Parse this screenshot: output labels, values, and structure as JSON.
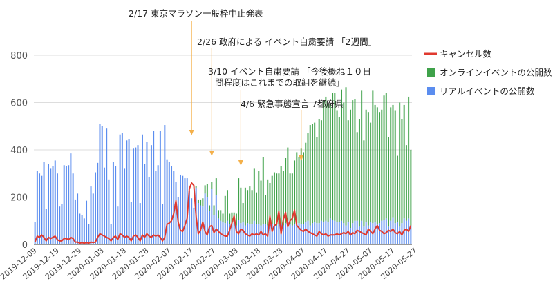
{
  "chart_data": {
    "type": "bar",
    "stacked": true,
    "title": "",
    "xlabel": "",
    "ylabel": "",
    "ylim": [
      0,
      800
    ],
    "yticks": [
      0,
      200,
      400,
      600,
      800
    ],
    "grid": true,
    "legend_position": "right",
    "x_start": "2019-12-09",
    "x_tick_labels": [
      "2019-12-09",
      "2019-12-19",
      "2019-12-29",
      "2020-01-08",
      "2020-01-18",
      "2020-01-28",
      "2020-02-07",
      "2020-02-17",
      "2020-02-27",
      "2020-03-08",
      "2020-03-18",
      "2020-03-28",
      "2020-04-07",
      "2020-04-17",
      "2020-04-27",
      "2020-05-07",
      "2020-05-17",
      "2020-05-27"
    ],
    "series": [
      {
        "name": "リアルイベントの公開数",
        "color": "#5b8def",
        "kind": "bar",
        "values": [
          95,
          310,
          300,
          290,
          350,
          150,
          340,
          320,
          330,
          355,
          300,
          160,
          170,
          335,
          330,
          335,
          385,
          300,
          190,
          215,
          130,
          125,
          110,
          185,
          85,
          245,
          215,
          305,
          345,
          510,
          500,
          325,
          490,
          275,
          85,
          350,
          330,
          160,
          465,
          470,
          320,
          440,
          445,
          180,
          405,
          410,
          420,
          175,
          465,
          340,
          435,
          285,
          420,
          480,
          310,
          335,
          480,
          170,
          505,
          360,
          350,
          330,
          310,
          265,
          200,
          295,
          290,
          280,
          280,
          225,
          195,
          155,
          240,
          175,
          165,
          160,
          215,
          200,
          140,
          235,
          125,
          210,
          110,
          100,
          95,
          90,
          100,
          85,
          85,
          95,
          80,
          105,
          90,
          95,
          80,
          90,
          85,
          85,
          100,
          85,
          85,
          80,
          85,
          85,
          80,
          100,
          85,
          85,
          80,
          85,
          85,
          80,
          90,
          100,
          85,
          80,
          85,
          90,
          90,
          85,
          85,
          95,
          100,
          80,
          90,
          95,
          90,
          90,
          100,
          95,
          100,
          95,
          110,
          105,
          100,
          95,
          95,
          100,
          90,
          80,
          95,
          70,
          90,
          100,
          100,
          75,
          100,
          75,
          95,
          80,
          95,
          90,
          95,
          85,
          90,
          100,
          105,
          110,
          75,
          100,
          115,
          90,
          95,
          75,
          90,
          110,
          100,
          110,
          80
        ]
      },
      {
        "name": "オンラインイベントの公開数",
        "color": "#3fa24a",
        "kind": "bar",
        "values": [
          0,
          0,
          0,
          0,
          0,
          0,
          0,
          0,
          0,
          0,
          0,
          0,
          0,
          0,
          0,
          0,
          0,
          0,
          0,
          0,
          0,
          0,
          0,
          0,
          0,
          0,
          0,
          0,
          0,
          0,
          0,
          0,
          0,
          0,
          0,
          0,
          0,
          0,
          0,
          0,
          0,
          0,
          0,
          0,
          0,
          0,
          0,
          0,
          0,
          0,
          0,
          0,
          0,
          0,
          0,
          0,
          0,
          0,
          0,
          0,
          0,
          0,
          0,
          0,
          0,
          0,
          0,
          0,
          0,
          0,
          0,
          0,
          5,
          15,
          25,
          35,
          35,
          55,
          25,
          30,
          40,
          70,
          35,
          45,
          35,
          115,
          130,
          45,
          50,
          40,
          50,
          175,
          150,
          80,
          160,
          140,
          160,
          145,
          220,
          135,
          225,
          190,
          285,
          125,
          195,
          160,
          205,
          220,
          220,
          215,
          245,
          230,
          275,
          310,
          215,
          220,
          270,
          300,
          280,
          320,
          305,
          335,
          370,
          425,
          420,
          420,
          365,
          440,
          425,
          510,
          525,
          500,
          485,
          535,
          540,
          470,
          445,
          555,
          510,
          585,
          430,
          500,
          520,
          515,
          375,
          455,
          550,
          365,
          475,
          480,
          420,
          560,
          495,
          495,
          470,
          470,
          525,
          530,
          380,
          480,
          475,
          475,
          280,
          525,
          440,
          480,
          320,
          515,
          320
        ]
      },
      {
        "name": "キャンセル数",
        "color": "#e0392f",
        "kind": "line",
        "values": [
          10,
          35,
          30,
          40,
          30,
          15,
          30,
          25,
          30,
          35,
          20,
          15,
          15,
          25,
          25,
          20,
          30,
          25,
          10,
          10,
          5,
          8,
          5,
          8,
          5,
          10,
          8,
          10,
          30,
          45,
          40,
          35,
          30,
          25,
          15,
          30,
          35,
          20,
          45,
          40,
          30,
          35,
          30,
          15,
          35,
          40,
          30,
          15,
          40,
          30,
          45,
          35,
          30,
          40,
          35,
          40,
          30,
          15,
          30,
          85,
          90,
          100,
          130,
          185,
          95,
          60,
          55,
          80,
          110,
          235,
          260,
          250,
          120,
          45,
          60,
          95,
          55,
          40,
          75,
          80,
          50,
          65,
          55,
          45,
          40,
          35,
          35,
          60,
          90,
          120,
          55,
          45,
          65,
          60,
          45,
          40,
          35,
          45,
          40,
          45,
          40,
          55,
          40,
          45,
          35,
          120,
          55,
          80,
          85,
          140,
          45,
          105,
          135,
          75,
          100,
          110,
          145,
          80,
          70,
          60,
          55,
          65,
          55,
          50,
          45,
          40,
          35,
          55,
          45,
          40,
          45,
          35,
          40,
          40,
          40,
          45,
          40,
          45,
          50,
          45,
          55,
          40,
          50,
          45,
          60,
          55,
          50,
          45,
          40,
          65,
          55,
          45,
          65,
          80,
          60,
          55,
          45,
          50,
          60,
          55,
          65,
          50,
          45,
          55,
          40,
          60,
          65,
          55,
          80
        ]
      }
    ],
    "annotations": [
      {
        "text": "2/17 東京マラソン一般枠中止発表",
        "date": "2020-02-17"
      },
      {
        "text": "2/26 政府による イベント自粛要請 「2週間」",
        "date": "2020-02-26"
      },
      {
        "text": "3/10 イベント自粛要請 「今後概ね１０日",
        "text2": "間程度はこれまでの取組を継続」",
        "date": "2020-03-10"
      },
      {
        "text": "4/6 緊急事態宣言 7都府県",
        "date": "2020-04-06"
      }
    ]
  }
}
